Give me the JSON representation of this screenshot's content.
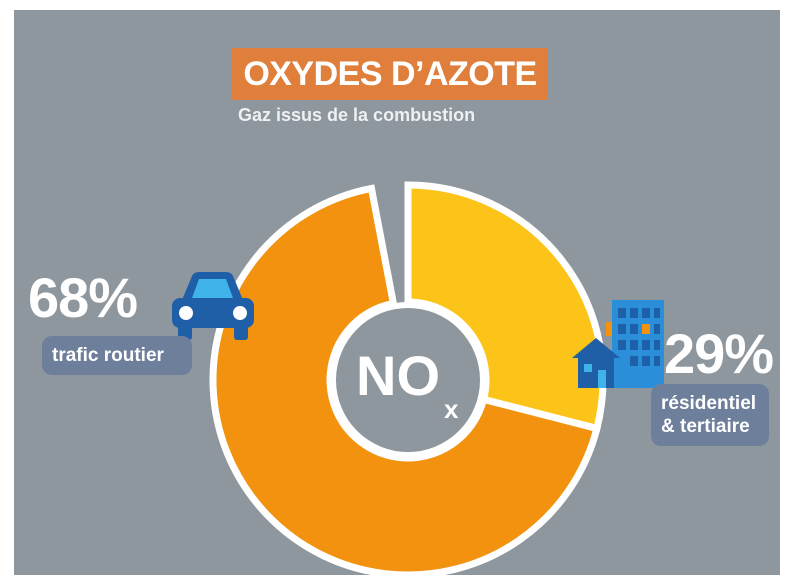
{
  "chart_data": {
    "type": "donut",
    "title": "OXYDES D’AZOTE",
    "subtitle": "Gaz issus de la combustion",
    "center_label": "NO",
    "center_subscript": "x",
    "categories": [
      "résidentiel & tertiaire",
      "trafic routier"
    ],
    "values": [
      29,
      68
    ],
    "value_labels": [
      "29%",
      "68%"
    ],
    "colors": [
      "#fcc419",
      "#f2920f"
    ]
  }
}
